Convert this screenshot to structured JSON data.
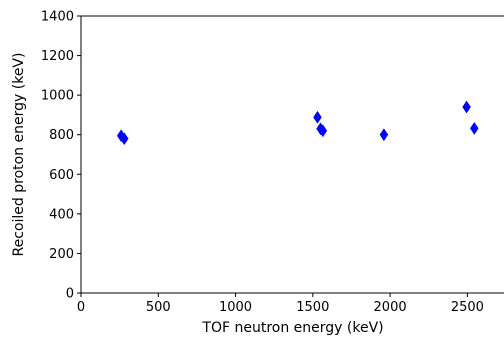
{
  "chart_data": {
    "type": "scatter",
    "title": "",
    "xlabel": "TOF neutron energy (keV)",
    "ylabel": "Recoiled proton energy (keV)",
    "xlim": [
      0,
      2750
    ],
    "ylim": [
      0,
      1400
    ],
    "xticks": [
      0,
      500,
      1000,
      1500,
      2000,
      2500
    ],
    "yticks": [
      0,
      200,
      400,
      600,
      800,
      1000,
      1200,
      1400
    ],
    "xtick_labels": [
      "0",
      "500",
      "1000",
      "1500",
      "2000",
      "2500"
    ],
    "ytick_labels": [
      "0",
      "200",
      "400",
      "600",
      "800",
      "1000",
      "1200",
      "1400"
    ],
    "grid": false,
    "marker": "diamond",
    "marker_color": "#0000ff",
    "series": [
      {
        "points": [
          {
            "x": 260,
            "y": 795
          },
          {
            "x": 280,
            "y": 780
          },
          {
            "x": 1530,
            "y": 888
          },
          {
            "x": 1550,
            "y": 830
          },
          {
            "x": 1565,
            "y": 820
          },
          {
            "x": 1960,
            "y": 800
          },
          {
            "x": 2495,
            "y": 940
          },
          {
            "x": 2545,
            "y": 832
          }
        ]
      }
    ]
  }
}
